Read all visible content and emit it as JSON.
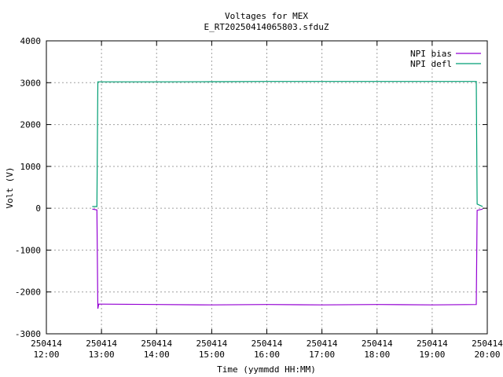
{
  "chart_data": {
    "type": "line",
    "title": "Voltages for MEX",
    "subtitle": "E_RT20250414065803.sfduZ",
    "xlabel": "Time (yymmdd HH:MM)",
    "ylabel": "Volt (V)",
    "xlim": [
      "2025-04-14 12:00",
      "2025-04-14 20:00"
    ],
    "ylim": [
      -3000,
      4000
    ],
    "grid": true,
    "legend": "top-right",
    "x_ticks": [
      {
        "date": "250414",
        "time": "12:00"
      },
      {
        "date": "250414",
        "time": "13:00"
      },
      {
        "date": "250414",
        "time": "14:00"
      },
      {
        "date": "250414",
        "time": "15:00"
      },
      {
        "date": "250414",
        "time": "16:00"
      },
      {
        "date": "250414",
        "time": "17:00"
      },
      {
        "date": "250414",
        "time": "18:00"
      },
      {
        "date": "250414",
        "time": "19:00"
      },
      {
        "date": "250414",
        "time": "20:00"
      }
    ],
    "y_ticks": [
      "-3000",
      "-2000",
      "-1000",
      "0",
      "1000",
      "2000",
      "3000",
      "4000"
    ],
    "series": [
      {
        "name": "NPI bias",
        "color": "#9400d3",
        "points": [
          [
            "2025-04-14 12:50",
            -20
          ],
          [
            "2025-04-14 12:55",
            -40
          ],
          [
            "2025-04-14 12:56",
            -2400
          ],
          [
            "2025-04-14 12:57",
            -2290
          ],
          [
            "2025-04-14 14:00",
            -2300
          ],
          [
            "2025-04-14 15:00",
            -2310
          ],
          [
            "2025-04-14 16:00",
            -2300
          ],
          [
            "2025-04-14 17:00",
            -2310
          ],
          [
            "2025-04-14 18:00",
            -2300
          ],
          [
            "2025-04-14 19:00",
            -2310
          ],
          [
            "2025-04-14 19:48",
            -2300
          ],
          [
            "2025-04-14 19:49",
            -50
          ],
          [
            "2025-04-14 19:55",
            -20
          ]
        ]
      },
      {
        "name": "NPI defl",
        "color": "#009e73",
        "points": [
          [
            "2025-04-14 12:50",
            40
          ],
          [
            "2025-04-14 12:55",
            40
          ],
          [
            "2025-04-14 12:56",
            3020
          ],
          [
            "2025-04-14 14:00",
            3020
          ],
          [
            "2025-04-14 15:00",
            3025
          ],
          [
            "2025-04-14 16:00",
            3030
          ],
          [
            "2025-04-14 17:00",
            3030
          ],
          [
            "2025-04-14 18:00",
            3030
          ],
          [
            "2025-04-14 19:00",
            3030
          ],
          [
            "2025-04-14 19:48",
            3030
          ],
          [
            "2025-04-14 19:49",
            100
          ],
          [
            "2025-04-14 19:55",
            40
          ]
        ]
      }
    ]
  }
}
